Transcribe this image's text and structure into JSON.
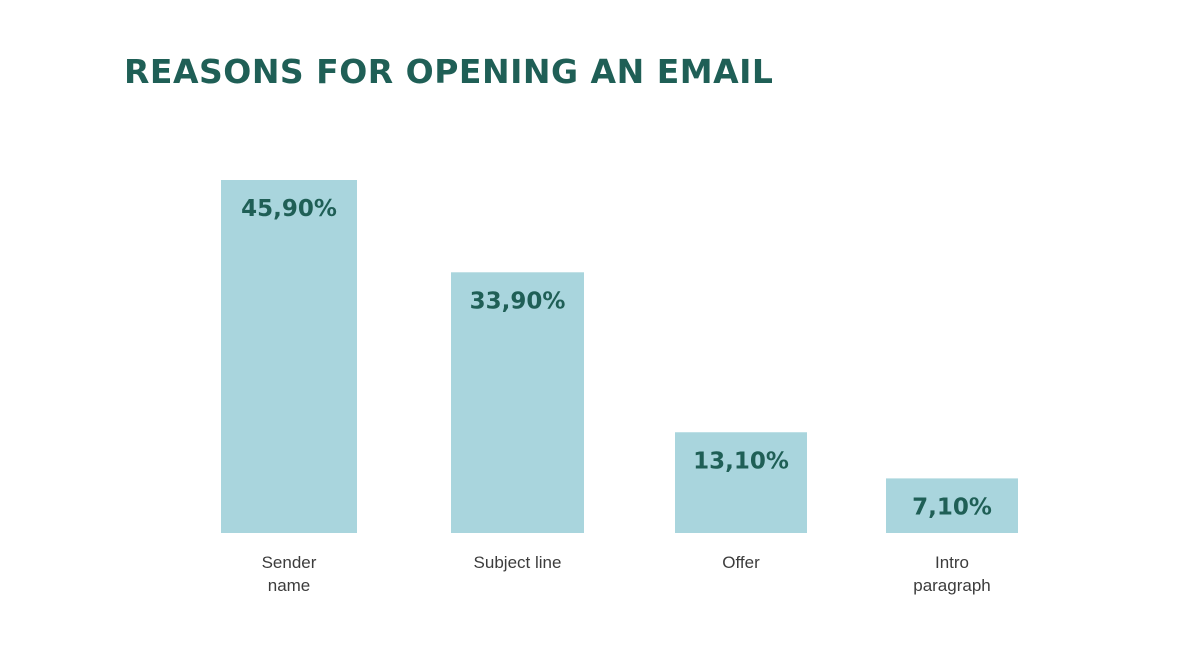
{
  "chart_data": {
    "type": "bar",
    "title": "REASONS FOR OPENING AN EMAIL",
    "categories": [
      [
        "Sender",
        "name"
      ],
      [
        "Subject line"
      ],
      [
        "Offer"
      ],
      [
        "Intro",
        "paragraph"
      ]
    ],
    "values": [
      45.9,
      33.9,
      13.1,
      7.1
    ],
    "value_labels": [
      "45,90%",
      "33,90%",
      "13,10%",
      "7,10%"
    ],
    "unit": "%",
    "ylim": [
      0,
      45.9
    ],
    "grid": false,
    "legend": "none",
    "colors": {
      "bar": "#a9d5dd",
      "value_text": "#1f5f56",
      "title": "#1f5f56",
      "category_text": "#3c3c3c"
    }
  }
}
